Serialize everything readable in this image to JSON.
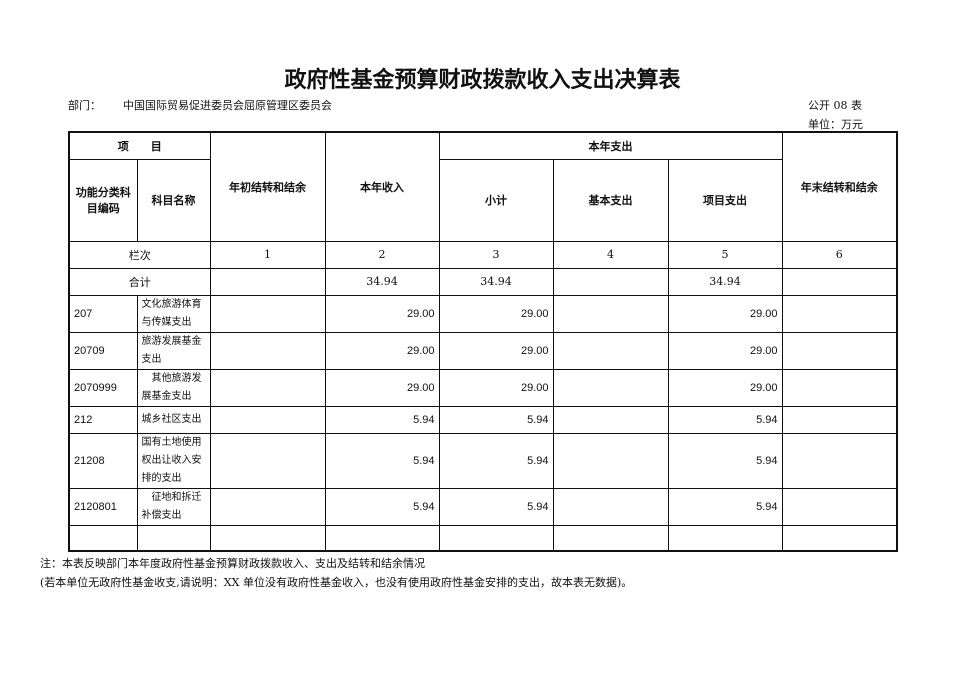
{
  "title": "政府性基金预算财政拨款收入支出决算表",
  "dept_label": "部门：",
  "dept_name": "中国国际贸易促进委员会屈原管理区委员会",
  "table_code": "公开 08 表",
  "unit": "单位：万元",
  "headers": {
    "item": "项　　目",
    "func_code": "功能分类科目编码",
    "subject_name": "科目名称",
    "begin_balance": "年初结转和结余",
    "income": "本年收入",
    "expense": "本年支出",
    "subtotal": "小计",
    "basic": "基本支出",
    "project": "项目支出",
    "end_balance": "年末结转和结余"
  },
  "col_index": {
    "label": "栏次",
    "c1": "1",
    "c2": "2",
    "c3": "3",
    "c4": "4",
    "c5": "5",
    "c6": "6"
  },
  "total": {
    "label": "合计",
    "begin": "",
    "income": "34.94",
    "subtotal": "34.94",
    "basic": "",
    "project": "34.94",
    "end": ""
  },
  "rows": [
    {
      "code": "207",
      "name": "文化旅游体育与传媒支出",
      "begin": "",
      "income": "29.00",
      "subtotal": "29.00",
      "basic": "",
      "project": "29.00",
      "end": ""
    },
    {
      "code": "20709",
      "name": "旅游发展基金支出",
      "begin": "",
      "income": "29.00",
      "subtotal": "29.00",
      "basic": "",
      "project": "29.00",
      "end": ""
    },
    {
      "code": "2070999",
      "name": "　其他旅游发展基金支出",
      "begin": "",
      "income": "29.00",
      "subtotal": "29.00",
      "basic": "",
      "project": "29.00",
      "end": ""
    },
    {
      "code": "212",
      "name": "城乡社区支出",
      "begin": "",
      "income": "5.94",
      "subtotal": "5.94",
      "basic": "",
      "project": "5.94",
      "end": ""
    },
    {
      "code": "21208",
      "name": "国有土地使用权出让收入安排的支出",
      "begin": "",
      "income": "5.94",
      "subtotal": "5.94",
      "basic": "",
      "project": "5.94",
      "end": ""
    },
    {
      "code": "2120801",
      "name": "　征地和拆迁补偿支出",
      "begin": "",
      "income": "5.94",
      "subtotal": "5.94",
      "basic": "",
      "project": "5.94",
      "end": ""
    }
  ],
  "notes": [
    "注：本表反映部门本年度政府性基金预算财政拨款收入、支出及结转和结余情况",
    "(若本单位无政府性基金收支,请说明：XX 单位没有政府性基金收入，也没有使用政府性基金安排的支出，故本表无数据)。"
  ]
}
